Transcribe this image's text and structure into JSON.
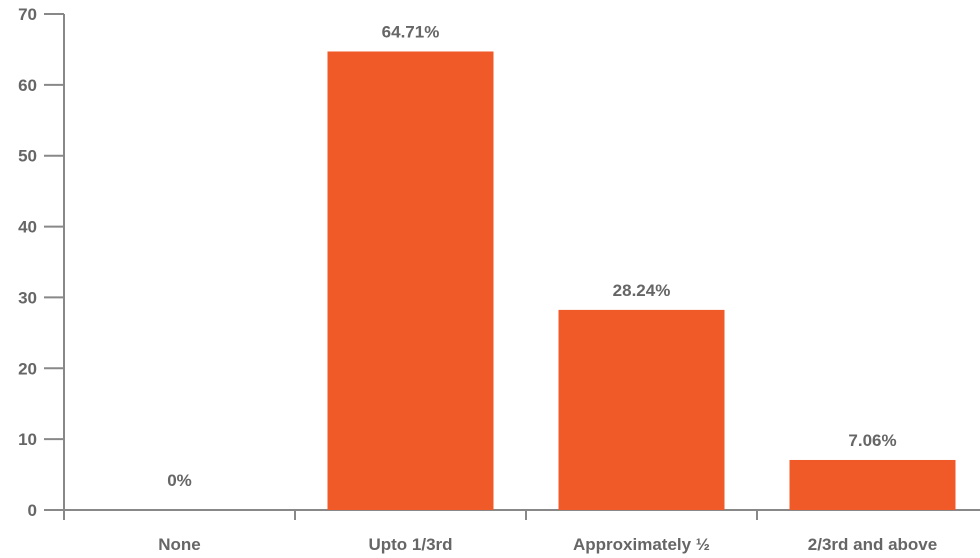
{
  "chart_data": {
    "type": "bar",
    "categories": [
      "None",
      "Upto 1/3rd",
      "Approximately ½",
      "2/3rd and above"
    ],
    "values": [
      0,
      64.71,
      28.24,
      7.06
    ],
    "data_labels": [
      "0%",
      "64.71%",
      "28.24%",
      "7.06%"
    ],
    "title": "",
    "xlabel": "",
    "ylabel": "",
    "ylim": [
      0,
      70
    ],
    "yticks": [
      0,
      10,
      20,
      30,
      40,
      50,
      60,
      70
    ],
    "grid": false,
    "legend": "none",
    "bar_color": "#F05A28",
    "text_color": "#666666",
    "axis_color": "#888888"
  }
}
